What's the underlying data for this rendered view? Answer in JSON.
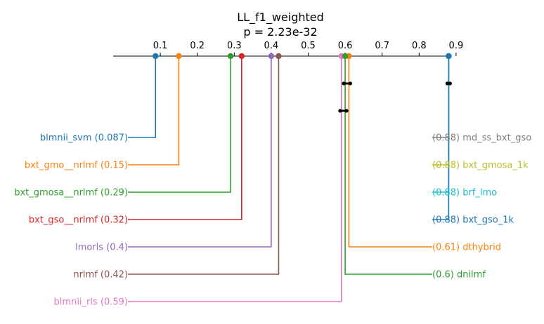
{
  "chart_data": {
    "type": "critical-difference",
    "title": "LL_f1_weighted",
    "subtitle": "p = 2.23e-32",
    "axis": {
      "range": [
        0.035,
        0.935
      ],
      "ticks": [
        0.1,
        0.2,
        0.3,
        0.4,
        0.5,
        0.6,
        0.7,
        0.8,
        0.9
      ],
      "tick_labels": [
        "0.1",
        "0.2",
        "0.3",
        "0.4",
        "0.5",
        "0.6",
        "0.7",
        "0.8",
        "0.9"
      ]
    },
    "left_methods": [
      {
        "name": "blmnii_svm",
        "value": 0.087,
        "label": "blmnii_svm (0.087)",
        "color": "#1f77b4"
      },
      {
        "name": "bxt_gmo__nrlmf",
        "value": 0.15,
        "label": "bxt_gmo__nrlmf (0.15)",
        "color": "#ff7f0e"
      },
      {
        "name": "bxt_gmosa__nrlmf",
        "value": 0.29,
        "label": "bxt_gmosa__nrlmf (0.29)",
        "color": "#2ca02c"
      },
      {
        "name": "bxt_gso__nrlmf",
        "value": 0.32,
        "label": "bxt_gso__nrlmf (0.32)",
        "color": "#d62728"
      },
      {
        "name": "lmorls",
        "value": 0.4,
        "label": "lmorls (0.4)",
        "color": "#9467bd"
      },
      {
        "name": "nrlmf",
        "value": 0.42,
        "label": "nrlmf (0.42)",
        "color": "#8c564b"
      },
      {
        "name": "blmnii_rls",
        "value": 0.59,
        "label": "blmnii_rls (0.59)",
        "color": "#e377c2"
      }
    ],
    "right_methods": [
      {
        "name": "md_ss_bxt_gso",
        "value": 0.88,
        "label": "(0.88) md_ss_bxt_gso",
        "color": "#7f7f7f"
      },
      {
        "name": "bxt_gmosa_1k",
        "value": 0.88,
        "label": "(0.88) bxt_gmosa_1k",
        "color": "#bcbd22"
      },
      {
        "name": "brf_lmo",
        "value": 0.88,
        "label": "(0.88) brf_lmo",
        "color": "#17becf"
      },
      {
        "name": "bxt_gso_1k",
        "value": 0.88,
        "label": "(0.88) bxt_gso_1k",
        "color": "#1f77b4"
      },
      {
        "name": "dthybrid",
        "value": 0.61,
        "label": "(0.61) dthybrid",
        "color": "#ff7f0e"
      },
      {
        "name": "dnilmf",
        "value": 0.6,
        "label": "(0.6) dnilmf",
        "color": "#2ca02c"
      }
    ],
    "cliques": [
      [
        0.6,
        0.61
      ],
      [
        0.59,
        0.6
      ],
      [
        0.88,
        0.88
      ]
    ],
    "grid": false,
    "legend": "none"
  }
}
